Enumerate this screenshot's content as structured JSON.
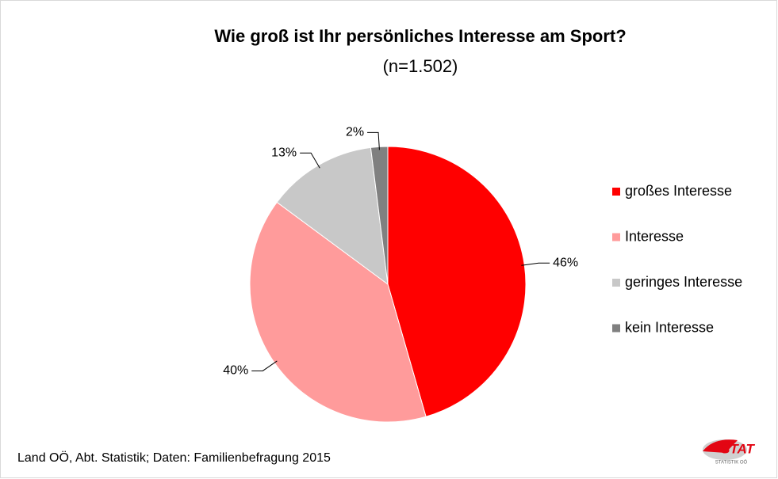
{
  "chart_data": {
    "type": "pie",
    "title": "Wie groß ist Ihr persönliches Interesse am Sport?",
    "subtitle": "(n=1.502)",
    "categories": [
      "großes Interesse",
      "Interesse",
      "geringes Interesse",
      "kein Interesse"
    ],
    "values": [
      46,
      40,
      13,
      2
    ],
    "value_labels": [
      "46%",
      "40%",
      "13%",
      "2%"
    ],
    "colors": [
      "#ff0000",
      "#ff9b9b",
      "#c8c8c8",
      "#808080"
    ],
    "legend": "right",
    "source": "Land OÖ, Abt. Statistik; Daten: Familienbefragung 2015",
    "logo": {
      "text": "STAT",
      "subtext": "STATISTIK OÖ"
    }
  }
}
